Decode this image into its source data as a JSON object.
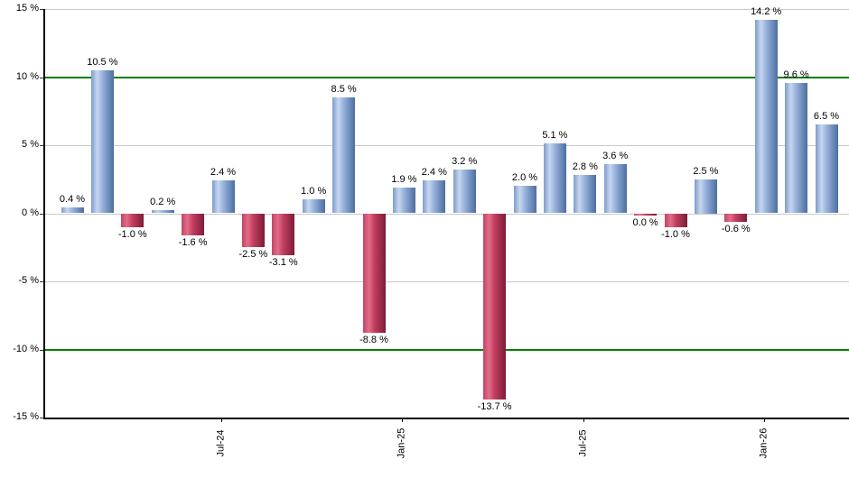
{
  "chart_data": {
    "type": "bar",
    "title": "",
    "xlabel": "",
    "ylabel": "",
    "ylim": [
      -15,
      15
    ],
    "grid": true,
    "legend_position": "none",
    "y_ticks": [
      {
        "value": 15,
        "label": "15 %"
      },
      {
        "value": 10,
        "label": "10 %"
      },
      {
        "value": 5,
        "label": "5 %"
      },
      {
        "value": 0,
        "label": "0 %"
      },
      {
        "value": -5,
        "label": "-5 %"
      },
      {
        "value": -10,
        "label": "-10 %"
      },
      {
        "value": -15,
        "label": "-15 %"
      }
    ],
    "threshold_values": [
      10,
      -10
    ],
    "x_ticks": [
      {
        "index": 5,
        "label": "Jul-24"
      },
      {
        "index": 11,
        "label": "Jan-25"
      },
      {
        "index": 17,
        "label": "Jul-25"
      },
      {
        "index": 23,
        "label": "Jan-26"
      }
    ],
    "points": [
      {
        "value": 0.4,
        "label": "0.4 %",
        "direction": "up"
      },
      {
        "value": 10.5,
        "label": "10.5 %",
        "direction": "up"
      },
      {
        "value": -1.0,
        "label": "-1.0 %",
        "direction": "down"
      },
      {
        "value": 0.2,
        "label": "0.2 %",
        "direction": "up"
      },
      {
        "value": -1.6,
        "label": "-1.6 %",
        "direction": "down"
      },
      {
        "value": 2.4,
        "label": "2.4 %",
        "direction": "up"
      },
      {
        "value": -2.5,
        "label": "-2.5 %",
        "direction": "down"
      },
      {
        "value": -3.1,
        "label": "-3.1 %",
        "direction": "down"
      },
      {
        "value": 1.0,
        "label": "1.0 %",
        "direction": "up"
      },
      {
        "value": 8.5,
        "label": "8.5 %",
        "direction": "up"
      },
      {
        "value": -8.8,
        "label": "-8.8 %",
        "direction": "down"
      },
      {
        "value": 1.9,
        "label": "1.9 %",
        "direction": "up"
      },
      {
        "value": 2.4,
        "label": "2.4 %",
        "direction": "up"
      },
      {
        "value": 3.2,
        "label": "3.2 %",
        "direction": "up"
      },
      {
        "value": -13.7,
        "label": "-13.7 %",
        "direction": "down"
      },
      {
        "value": 2.0,
        "label": "2.0 %",
        "direction": "up"
      },
      {
        "value": 5.1,
        "label": "5.1 %",
        "direction": "up"
      },
      {
        "value": 2.8,
        "label": "2.8 %",
        "direction": "up"
      },
      {
        "value": 3.6,
        "label": "3.6 %",
        "direction": "up"
      },
      {
        "value": 0.0,
        "label": "0.0 %",
        "direction": "down"
      },
      {
        "value": -1.0,
        "label": "-1.0 %",
        "direction": "down"
      },
      {
        "value": 2.5,
        "label": "2.5 %",
        "direction": "up"
      },
      {
        "value": -0.6,
        "label": "-0.6 %",
        "direction": "down"
      },
      {
        "value": 14.2,
        "label": "14.2 %",
        "direction": "up"
      },
      {
        "value": 9.6,
        "label": "9.6 %",
        "direction": "up"
      },
      {
        "value": 6.5,
        "label": "6.5 %",
        "direction": "up"
      }
    ],
    "colors": {
      "positive_bar": "#7E9BCB",
      "positive_highlight": "#C6D6F0",
      "positive_dark": "#4E6E9E",
      "negative_bar": "#C04565",
      "negative_highlight": "#E36C88",
      "negative_dark": "#7E1C38",
      "threshold_line": "#008000",
      "gridline": "#C9C9C9",
      "axis": "#000000",
      "background": "#FFFFFF"
    }
  }
}
